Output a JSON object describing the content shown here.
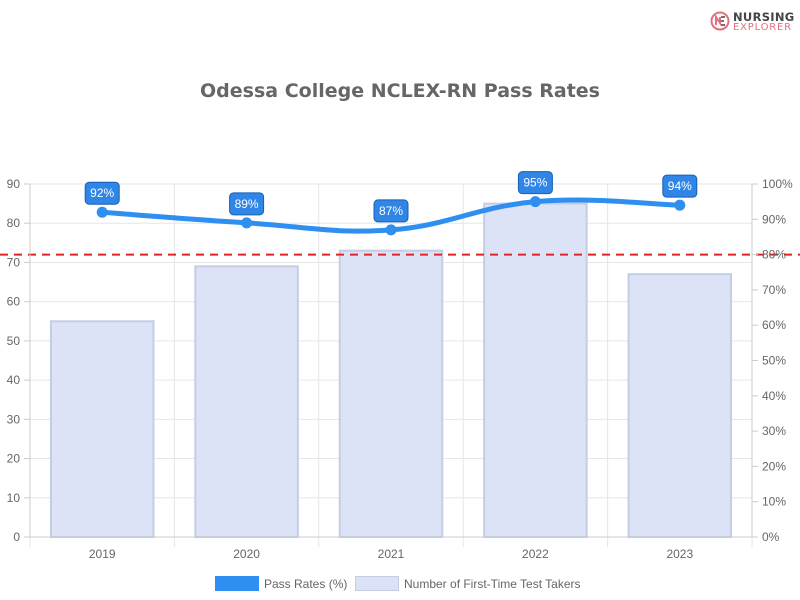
{
  "brand": {
    "line1": "NURSING",
    "line2": "EXPLORER",
    "icon": "nursing-explorer-logo-icon",
    "accent_color": "#e46f7c"
  },
  "chart_data": {
    "type": "bar",
    "title": "Odessa College NCLEX-RN Pass Rates",
    "categories": [
      "2019",
      "2020",
      "2021",
      "2022",
      "2023"
    ],
    "series": [
      {
        "name": "Pass Rates (%)",
        "type": "line",
        "axis": "right",
        "values": [
          92,
          89,
          87,
          95,
          94
        ],
        "labels": [
          "92%",
          "89%",
          "87%",
          "95%",
          "94%"
        ],
        "color": "#2f8ff0"
      },
      {
        "name": "Number of First-Time Test Takers",
        "type": "bar",
        "axis": "left",
        "values": [
          55,
          69,
          73,
          85,
          67
        ],
        "color": "#dde3f7",
        "border_color": "#c5cde6"
      }
    ],
    "y_left": {
      "ylim": [
        0,
        90
      ],
      "ticks": [
        "0",
        "10",
        "20",
        "30",
        "40",
        "50",
        "60",
        "70",
        "80",
        "90"
      ]
    },
    "y_right": {
      "ylim": [
        0,
        100
      ],
      "ticks": [
        "0%",
        "10%",
        "20%",
        "30%",
        "40%",
        "50%",
        "60%",
        "70%",
        "80%",
        "90%",
        "100%"
      ]
    },
    "reference_line": {
      "value": 80,
      "axis": "right",
      "style": "dashed",
      "color": "#e02424"
    },
    "grid": true,
    "legend_position": "bottom"
  }
}
